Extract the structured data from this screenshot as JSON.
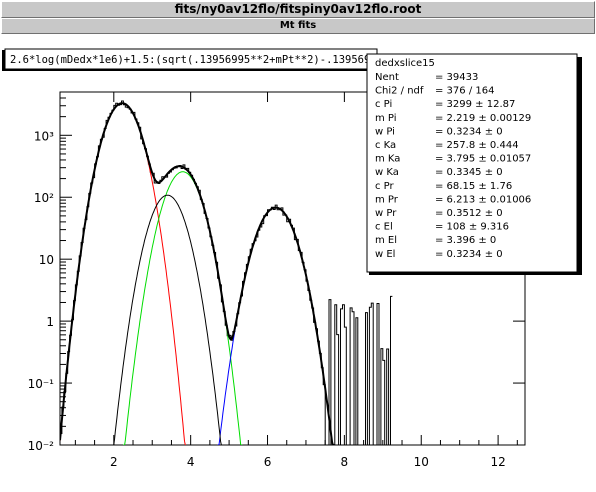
{
  "window": {
    "title": "fits/ny0av12flo/fitspiny0av12flo.root",
    "canvas_title": "Mt fits"
  },
  "formula_box": "2.6*log(mDedx*1e6)+1.5:(sqrt(.13956995**2+mPt**2)-.13956995",
  "stats": {
    "title": "dedxslice15",
    "rows": [
      {
        "label": "Nent",
        "value": "= 39433"
      },
      {
        "label": "Chi2 / ndf",
        "value": "=   376 / 164"
      },
      {
        "label": "c Pi",
        "value": "=   3299 ± 12.87"
      },
      {
        "label": "m Pi",
        "value": "= 2.219 ± 0.00129"
      },
      {
        "label": "w Pi",
        "value": "= 0.3234 ±    0"
      },
      {
        "label": "c Ka",
        "value": "=  257.8 ± 0.444"
      },
      {
        "label": "m Ka",
        "value": "=   3.795 ± 0.01057"
      },
      {
        "label": "w Ka",
        "value": "= 0.3345 ±    0"
      },
      {
        "label": "c Pr",
        "value": "= 68.15 ±  1.76"
      },
      {
        "label": "m Pr",
        "value": "= 6.213 ± 0.01006"
      },
      {
        "label": "w Pr",
        "value": "= 0.3512 ±    0"
      },
      {
        "label": "c El",
        "value": "=    108 ± 9.316"
      },
      {
        "label": "m El",
        "value": "= 3.396 ±    0"
      },
      {
        "label": "w El",
        "value": "= 0.3234 ±    0"
      }
    ]
  },
  "chart_data": {
    "type": "line",
    "title": "",
    "xlabel": "",
    "ylabel": "",
    "xlim": [
      0.6,
      12.7
    ],
    "ylim": [
      0.01,
      5000
    ],
    "yscale": "log",
    "xticks": [
      2,
      4,
      6,
      8,
      10,
      12
    ],
    "yticks": [
      {
        "value": 0.01,
        "label": "10⁻²"
      },
      {
        "value": 0.1,
        "label": "10⁻¹"
      },
      {
        "value": 1,
        "label": "1"
      },
      {
        "value": 10,
        "label": "10"
      },
      {
        "value": 100,
        "label": "10²"
      },
      {
        "value": 1000,
        "label": "10³"
      }
    ],
    "colors": {
      "total": "#000000",
      "pion": "#ff0000",
      "kaon": "#00dd00",
      "proton": "#0000ff",
      "electron": "#000000",
      "histogram": "#000000"
    },
    "series": [
      {
        "key": "pion",
        "c": 3299,
        "m": 2.219,
        "w": 0.3234
      },
      {
        "key": "kaon",
        "c": 257.8,
        "m": 3.795,
        "w": 0.3345
      },
      {
        "key": "proton",
        "c": 68.15,
        "m": 6.213,
        "w": 0.3512
      },
      {
        "key": "electron",
        "c": 108,
        "m": 3.396,
        "w": 0.3234
      }
    ],
    "histogram_noise_seed": 7
  }
}
